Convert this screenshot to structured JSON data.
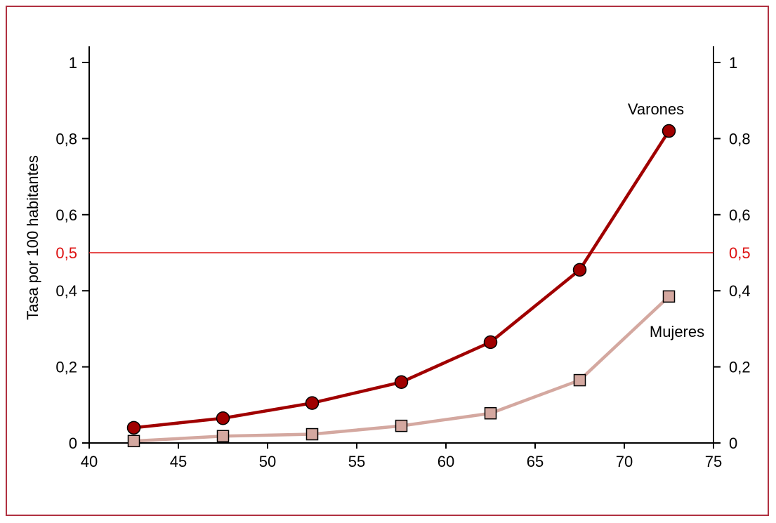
{
  "chart_data": {
    "type": "line",
    "title": "",
    "xlabel": "",
    "ylabel": "Tasa por 100 habitantes",
    "xlim": [
      40,
      75
    ],
    "ylim": [
      0,
      1
    ],
    "x_ticks": [
      "40",
      "45",
      "50",
      "55",
      "60",
      "65",
      "70",
      "75"
    ],
    "y_ticks": [
      "0",
      "0,2",
      "0,4",
      "0,6",
      "0,8",
      "1"
    ],
    "reference_line": {
      "y": 0.5,
      "label": "0,5",
      "color": "#dd1111"
    },
    "series": [
      {
        "name": "Varones",
        "color": "#a00000",
        "marker": "circle",
        "x": [
          42.5,
          47.5,
          52.5,
          57.5,
          62.5,
          67.5,
          72.5
        ],
        "y": [
          0.04,
          0.065,
          0.105,
          0.16,
          0.265,
          0.455,
          0.82
        ]
      },
      {
        "name": "Mujeres",
        "color": "#d4a8a0",
        "marker": "square",
        "x": [
          42.5,
          47.5,
          52.5,
          57.5,
          62.5,
          67.5,
          72.5
        ],
        "y": [
          0.005,
          0.018,
          0.023,
          0.045,
          0.078,
          0.165,
          0.385
        ]
      }
    ],
    "grid": false,
    "secondary_y_axis": true
  }
}
